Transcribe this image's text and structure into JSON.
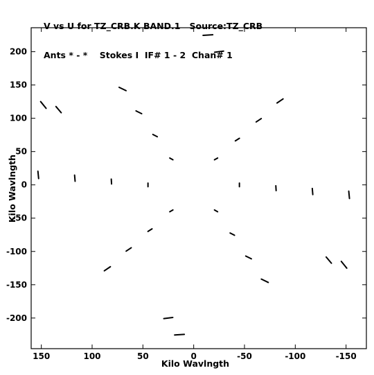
{
  "header": {
    "line1": "V vs U for TZ_CRB.K BAND.1   Source:TZ_CRB",
    "line2": "Ants * - *    Stokes I  IF# 1 - 2  Chan# 1"
  },
  "chart_data": {
    "type": "scatter",
    "title": "V vs U for TZ_CRB.K BAND.1   Source:TZ_CRB",
    "subtitle": "Ants * - *    Stokes I  IF# 1 - 2  Chan# 1",
    "xlabel": "Kilo Wavlngth",
    "ylabel": "Kilo Wavlngth",
    "xlim": [
      160,
      -170
    ],
    "ylim": [
      -246,
      236
    ],
    "x_reversed": true,
    "grid": false,
    "xticks": [
      150,
      100,
      50,
      0,
      -50,
      -100,
      -150
    ],
    "yticks": [
      200,
      150,
      100,
      50,
      0,
      -50,
      -100,
      -150,
      -200
    ],
    "series": [
      {
        "name": "",
        "mark": "short dashes along radial arms of a six-pointed star (uv-coverage)",
        "points": [
          [
            45,
            0
          ],
          [
            -45,
            0
          ],
          [
            81,
            5
          ],
          [
            -81,
            -5
          ],
          [
            117,
            10
          ],
          [
            -117,
            -10
          ],
          [
            153,
            15
          ],
          [
            -153,
            -15
          ],
          [
            22,
            39
          ],
          [
            -22,
            -39
          ],
          [
            38,
            74
          ],
          [
            -38,
            -74
          ],
          [
            54,
            109
          ],
          [
            -54,
            -109
          ],
          [
            70,
            144
          ],
          [
            -70,
            -144
          ],
          [
            -22,
            39
          ],
          [
            22,
            -39
          ],
          [
            -43,
            68
          ],
          [
            43,
            -68
          ],
          [
            -64,
            97
          ],
          [
            64,
            -97
          ],
          [
            -85,
            126
          ],
          [
            85,
            -126
          ],
          [
            -14,
            225
          ],
          [
            14,
            -225
          ],
          [
            -25,
            200
          ],
          [
            25,
            -200
          ],
          [
            133,
            113
          ],
          [
            -133,
            -113
          ],
          [
            148,
            120
          ],
          [
            -148,
            -120
          ]
        ]
      }
    ]
  }
}
